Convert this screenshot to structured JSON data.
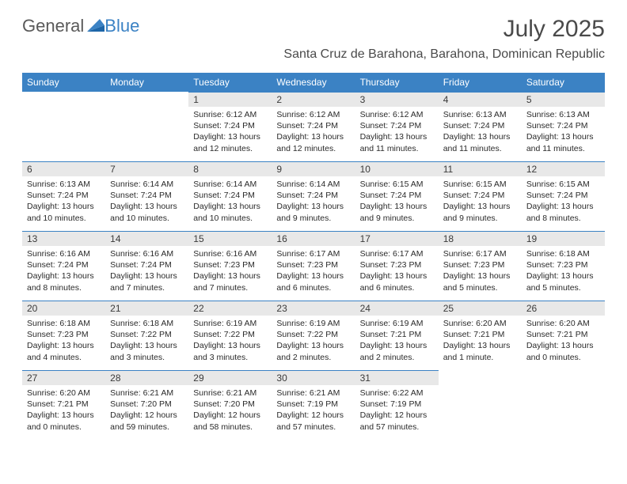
{
  "brand": {
    "word1": "General",
    "word2": "Blue"
  },
  "title": "July 2025",
  "location": "Santa Cruz de Barahona, Barahona, Dominican Republic",
  "colors": {
    "header_bg": "#3b82c4",
    "header_fg": "#ffffff",
    "daynum_bg": "#e8e8e8",
    "border": "#3b82c4",
    "text": "#2a2a2a",
    "logo_gray": "#5a5a5a"
  },
  "weekdays": [
    "Sunday",
    "Monday",
    "Tuesday",
    "Wednesday",
    "Thursday",
    "Friday",
    "Saturday"
  ],
  "weeks": [
    [
      null,
      null,
      {
        "n": "1",
        "sr": "6:12 AM",
        "ss": "7:24 PM",
        "dl": "13 hours and 12 minutes."
      },
      {
        "n": "2",
        "sr": "6:12 AM",
        "ss": "7:24 PM",
        "dl": "13 hours and 12 minutes."
      },
      {
        "n": "3",
        "sr": "6:12 AM",
        "ss": "7:24 PM",
        "dl": "13 hours and 11 minutes."
      },
      {
        "n": "4",
        "sr": "6:13 AM",
        "ss": "7:24 PM",
        "dl": "13 hours and 11 minutes."
      },
      {
        "n": "5",
        "sr": "6:13 AM",
        "ss": "7:24 PM",
        "dl": "13 hours and 11 minutes."
      }
    ],
    [
      {
        "n": "6",
        "sr": "6:13 AM",
        "ss": "7:24 PM",
        "dl": "13 hours and 10 minutes."
      },
      {
        "n": "7",
        "sr": "6:14 AM",
        "ss": "7:24 PM",
        "dl": "13 hours and 10 minutes."
      },
      {
        "n": "8",
        "sr": "6:14 AM",
        "ss": "7:24 PM",
        "dl": "13 hours and 10 minutes."
      },
      {
        "n": "9",
        "sr": "6:14 AM",
        "ss": "7:24 PM",
        "dl": "13 hours and 9 minutes."
      },
      {
        "n": "10",
        "sr": "6:15 AM",
        "ss": "7:24 PM",
        "dl": "13 hours and 9 minutes."
      },
      {
        "n": "11",
        "sr": "6:15 AM",
        "ss": "7:24 PM",
        "dl": "13 hours and 9 minutes."
      },
      {
        "n": "12",
        "sr": "6:15 AM",
        "ss": "7:24 PM",
        "dl": "13 hours and 8 minutes."
      }
    ],
    [
      {
        "n": "13",
        "sr": "6:16 AM",
        "ss": "7:24 PM",
        "dl": "13 hours and 8 minutes."
      },
      {
        "n": "14",
        "sr": "6:16 AM",
        "ss": "7:24 PM",
        "dl": "13 hours and 7 minutes."
      },
      {
        "n": "15",
        "sr": "6:16 AM",
        "ss": "7:23 PM",
        "dl": "13 hours and 7 minutes."
      },
      {
        "n": "16",
        "sr": "6:17 AM",
        "ss": "7:23 PM",
        "dl": "13 hours and 6 minutes."
      },
      {
        "n": "17",
        "sr": "6:17 AM",
        "ss": "7:23 PM",
        "dl": "13 hours and 6 minutes."
      },
      {
        "n": "18",
        "sr": "6:17 AM",
        "ss": "7:23 PM",
        "dl": "13 hours and 5 minutes."
      },
      {
        "n": "19",
        "sr": "6:18 AM",
        "ss": "7:23 PM",
        "dl": "13 hours and 5 minutes."
      }
    ],
    [
      {
        "n": "20",
        "sr": "6:18 AM",
        "ss": "7:23 PM",
        "dl": "13 hours and 4 minutes."
      },
      {
        "n": "21",
        "sr": "6:18 AM",
        "ss": "7:22 PM",
        "dl": "13 hours and 3 minutes."
      },
      {
        "n": "22",
        "sr": "6:19 AM",
        "ss": "7:22 PM",
        "dl": "13 hours and 3 minutes."
      },
      {
        "n": "23",
        "sr": "6:19 AM",
        "ss": "7:22 PM",
        "dl": "13 hours and 2 minutes."
      },
      {
        "n": "24",
        "sr": "6:19 AM",
        "ss": "7:21 PM",
        "dl": "13 hours and 2 minutes."
      },
      {
        "n": "25",
        "sr": "6:20 AM",
        "ss": "7:21 PM",
        "dl": "13 hours and 1 minute."
      },
      {
        "n": "26",
        "sr": "6:20 AM",
        "ss": "7:21 PM",
        "dl": "13 hours and 0 minutes."
      }
    ],
    [
      {
        "n": "27",
        "sr": "6:20 AM",
        "ss": "7:21 PM",
        "dl": "13 hours and 0 minutes."
      },
      {
        "n": "28",
        "sr": "6:21 AM",
        "ss": "7:20 PM",
        "dl": "12 hours and 59 minutes."
      },
      {
        "n": "29",
        "sr": "6:21 AM",
        "ss": "7:20 PM",
        "dl": "12 hours and 58 minutes."
      },
      {
        "n": "30",
        "sr": "6:21 AM",
        "ss": "7:19 PM",
        "dl": "12 hours and 57 minutes."
      },
      {
        "n": "31",
        "sr": "6:22 AM",
        "ss": "7:19 PM",
        "dl": "12 hours and 57 minutes."
      },
      null,
      null
    ]
  ],
  "labels": {
    "sunrise": "Sunrise:",
    "sunset": "Sunset:",
    "daylight": "Daylight:"
  }
}
